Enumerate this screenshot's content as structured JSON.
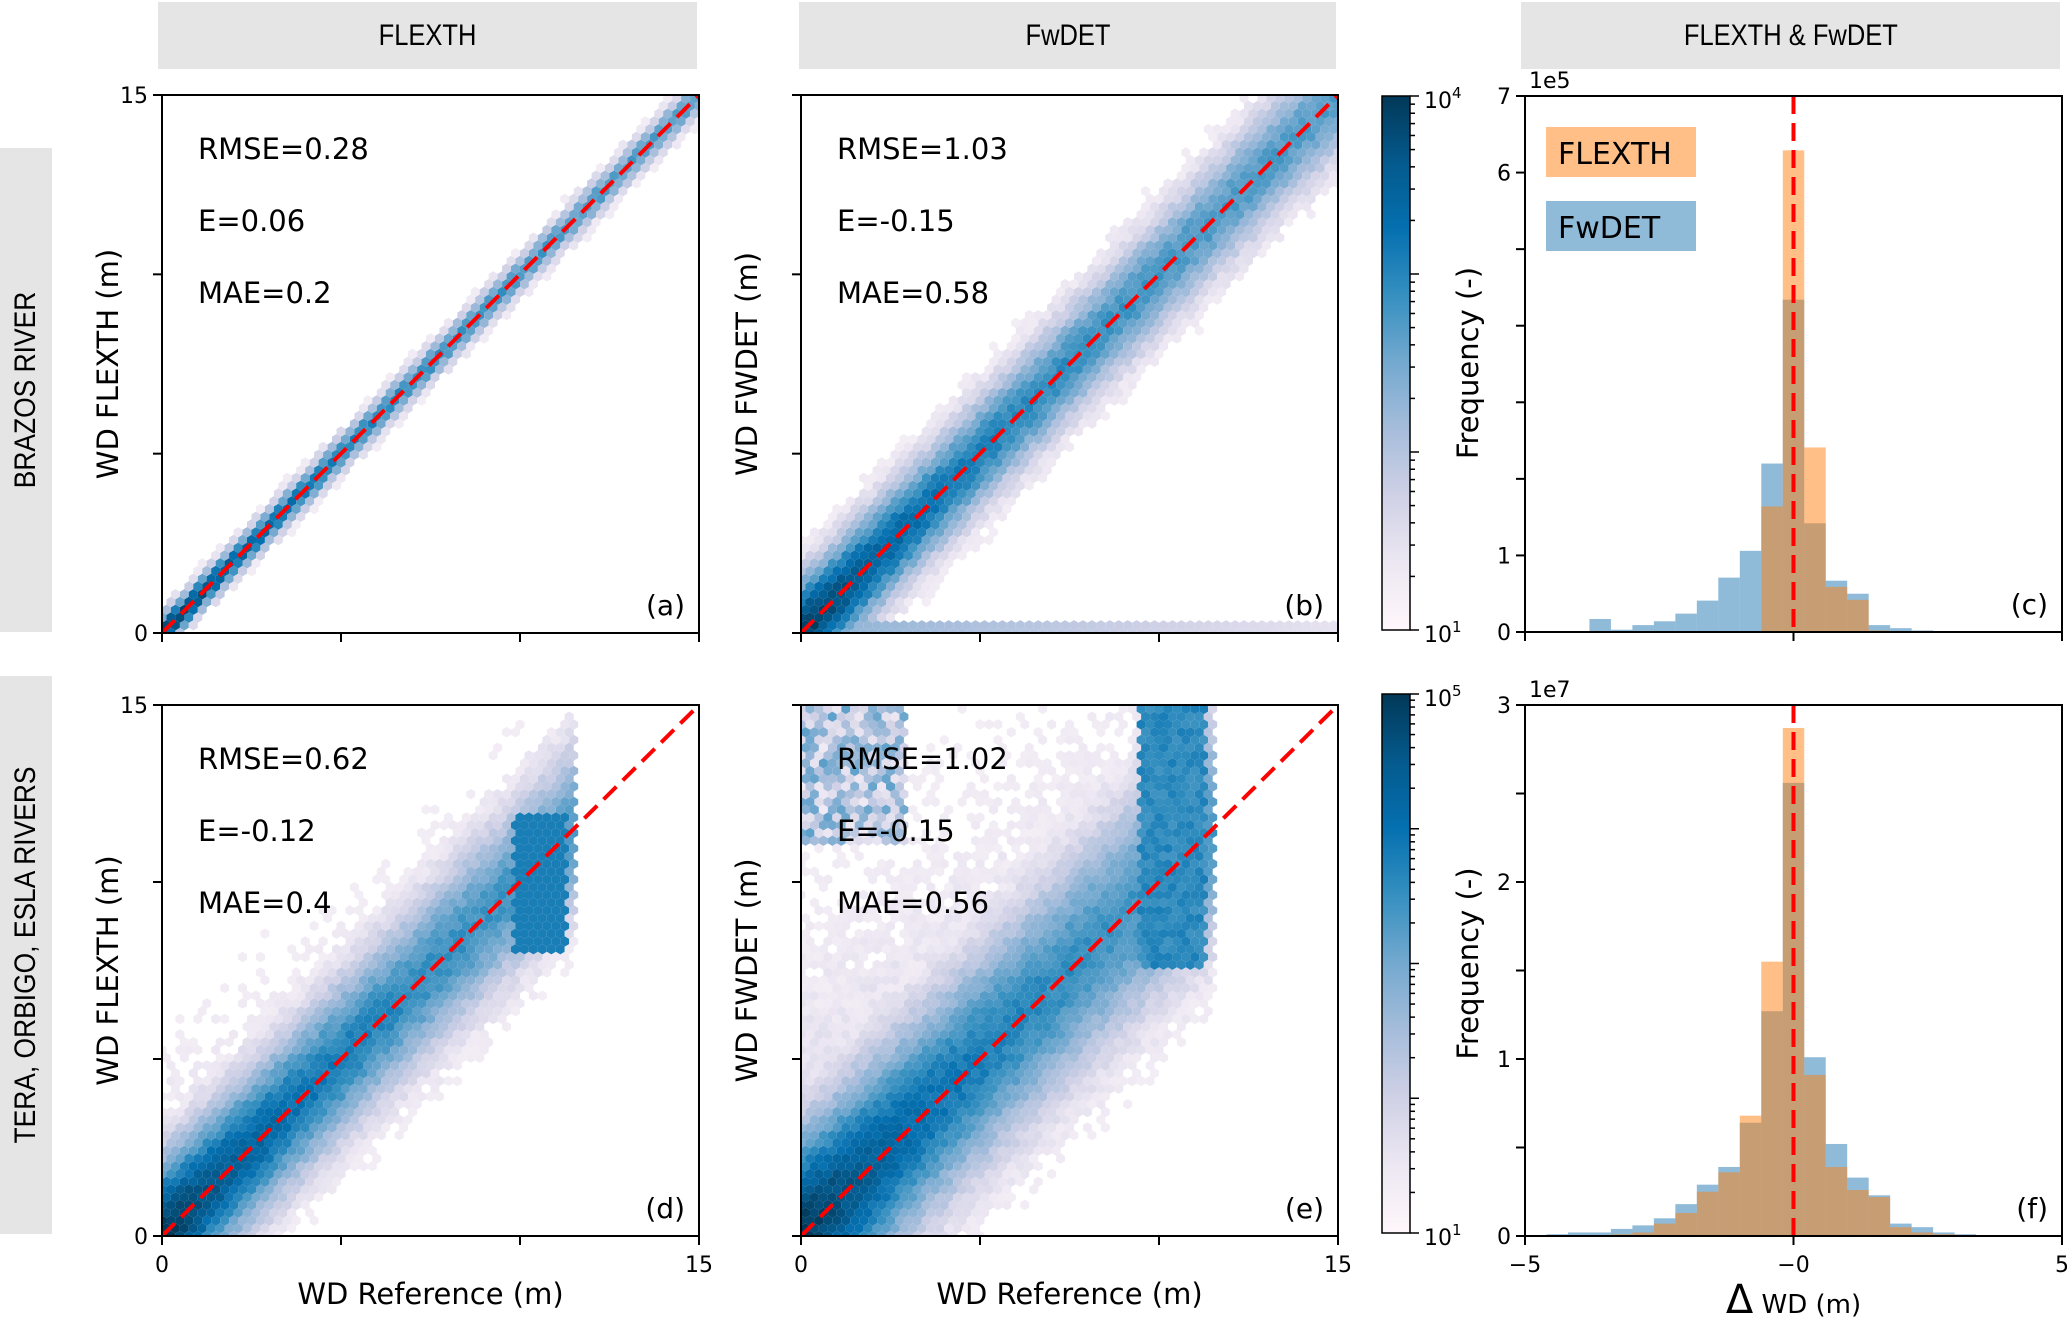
{
  "column_headers": [
    "FLEXTH",
    "FwDET",
    "FLEXTH & FwDET"
  ],
  "row_labels": [
    "BRAZOS RIVER",
    "TERA, ORBIGO, ESLA RIVERS"
  ],
  "colors": {
    "hex_cmap": [
      "#fff7fb",
      "#ece7f2",
      "#d0d1e6",
      "#a6bddb",
      "#74a9cf",
      "#3690c0",
      "#0570b0",
      "#045a8d",
      "#023858"
    ],
    "one_to_one_line": "#ff0000",
    "flexth_hist": "#ff7f0e",
    "fwdet_hist": "#1f77b4",
    "header_bg": "#e5e5e5"
  },
  "chart_data": [
    {
      "id": "a",
      "type": "heatmap",
      "subtype": "hexbin",
      "panel_label": "(a)",
      "row": "BRAZOS RIVER",
      "column": "FLEXTH",
      "xlabel": "",
      "ylabel": "WD FLEXTH (m)",
      "xlim": [
        0,
        15
      ],
      "ylim": [
        0,
        15
      ],
      "xticks": [
        0,
        5,
        10,
        15
      ],
      "xtick_labels": [
        "",
        "",
        "",
        ""
      ],
      "yticks": [
        0,
        5,
        10,
        15
      ],
      "ytick_labels": [
        "0",
        "",
        "",
        "15"
      ],
      "stats": [
        "RMSE=0.28",
        "E=0.06",
        "MAE=0.2"
      ],
      "reference_line": "1:1 dashed",
      "density_model": {
        "slope": 1.0,
        "spread": 0.35,
        "tail_above": 0.25,
        "tail_below": 0.1,
        "xmax": 14.8,
        "peak_near_origin": true,
        "scale": "log",
        "clim": [
          10,
          10000
        ]
      }
    },
    {
      "id": "b",
      "type": "heatmap",
      "subtype": "hexbin",
      "panel_label": "(b)",
      "row": "BRAZOS RIVER",
      "column": "FwDET",
      "xlabel": "",
      "ylabel": "WD FWDET (m)",
      "xlim": [
        0,
        15
      ],
      "ylim": [
        0,
        15
      ],
      "xticks": [
        0,
        5,
        10,
        15
      ],
      "xtick_labels": [
        "",
        "",
        "",
        ""
      ],
      "yticks": [
        0,
        5,
        10,
        15
      ],
      "ytick_labels": [
        "",
        "",
        "",
        ""
      ],
      "stats": [
        "RMSE=1.03",
        "E=-0.15",
        "MAE=0.58"
      ],
      "reference_line": "1:1 dashed",
      "density_model": {
        "slope": 1.0,
        "spread": 1.1,
        "tail_above": 1.2,
        "tail_below": 1.0,
        "xmax": 15,
        "peak_near_origin": true,
        "scale": "log",
        "clim": [
          10,
          10000
        ]
      }
    },
    {
      "id": "c",
      "type": "bar",
      "subtype": "overlaid histogram",
      "panel_label": "(c)",
      "row": "BRAZOS RIVER",
      "column": "FLEXTH & FwDET",
      "xlabel": "",
      "ylabel": "",
      "xlim": [
        -5,
        5
      ],
      "ylim": [
        0,
        7
      ],
      "y_multiplier": "1e5",
      "xticks": [
        -5,
        0,
        5
      ],
      "xtick_labels": [
        "",
        "",
        ""
      ],
      "yticks": [
        0,
        1,
        2,
        3,
        4,
        5,
        6,
        7
      ],
      "ytick_labels": [
        "0",
        "1",
        "",
        "",
        "",
        "",
        "6",
        "7"
      ],
      "bin_width": 0.4,
      "reference_line": "x=0 dashed",
      "legend": {
        "position": "top-left",
        "entries": [
          "FLEXTH",
          "FwDET"
        ]
      },
      "bin_centers": [
        -3.6,
        -3.2,
        -2.8,
        -2.4,
        -2.0,
        -1.6,
        -1.2,
        -0.8,
        -0.4,
        0.0,
        0.4,
        0.8,
        1.2,
        1.6,
        2.0,
        2.4
      ],
      "series": [
        {
          "name": "FLEXTH",
          "values": [
            0,
            0,
            0,
            0,
            0,
            0,
            0,
            0.01,
            1.64,
            6.29,
            2.41,
            0.59,
            0.42,
            0.02,
            0,
            0
          ]
        },
        {
          "name": "FwDET",
          "values": [
            0.17,
            0.03,
            0.09,
            0.14,
            0.24,
            0.41,
            0.71,
            1.06,
            2.2,
            4.34,
            1.42,
            0.67,
            0.5,
            0.09,
            0.05,
            0.02
          ]
        }
      ]
    },
    {
      "id": "d",
      "type": "heatmap",
      "subtype": "hexbin",
      "panel_label": "(d)",
      "row": "TERA, ORBIGO, ESLA RIVERS",
      "column": "FLEXTH",
      "xlabel": "WD Reference (m)",
      "ylabel": "WD FLEXTH (m)",
      "xlim": [
        0,
        15
      ],
      "ylim": [
        0,
        15
      ],
      "xticks": [
        0,
        5,
        10,
        15
      ],
      "xtick_labels": [
        "0",
        "",
        "",
        "15"
      ],
      "yticks": [
        0,
        5,
        10,
        15
      ],
      "ytick_labels": [
        "0",
        "",
        "",
        "15"
      ],
      "stats": [
        "RMSE=0.62",
        "E=-0.12",
        "MAE=0.4"
      ],
      "reference_line": "1:1 dashed",
      "density_model": {
        "slope": 1.0,
        "spread": 1.6,
        "tail_above": 3.0,
        "tail_below": 1.5,
        "xmax": 11.3,
        "peak_near_origin": true,
        "scale": "log",
        "clim": [
          10,
          100000
        ]
      }
    },
    {
      "id": "e",
      "type": "heatmap",
      "subtype": "hexbin",
      "panel_label": "(e)",
      "row": "TERA, ORBIGO, ESLA RIVERS",
      "column": "FwDET",
      "xlabel": "WD Reference (m)",
      "ylabel": "WD FWDET (m)",
      "xlim": [
        0,
        15
      ],
      "ylim": [
        0,
        15
      ],
      "xticks": [
        0,
        5,
        10,
        15
      ],
      "xtick_labels": [
        "0",
        "",
        "",
        "15"
      ],
      "yticks": [
        0,
        5,
        10,
        15
      ],
      "ytick_labels": [
        "",
        "",
        "",
        ""
      ],
      "stats": [
        "RMSE=1.02",
        "E=-0.15",
        "MAE=0.56"
      ],
      "reference_line": "1:1 dashed",
      "density_model": {
        "slope": 1.0,
        "spread": 2.2,
        "tail_above": 6.0,
        "tail_below": 2.5,
        "xmax": 11.3,
        "peak_near_origin": true,
        "scale": "log",
        "clim": [
          10,
          100000
        ]
      }
    },
    {
      "id": "f",
      "type": "bar",
      "subtype": "overlaid histogram",
      "panel_label": "(f)",
      "row": "TERA, ORBIGO, ESLA RIVERS",
      "column": "FLEXTH & FwDET",
      "xlabel": "ΔWD (m)",
      "ylabel": "",
      "xlim": [
        -5,
        5
      ],
      "ylim": [
        0,
        3
      ],
      "y_multiplier": "1e7",
      "xticks": [
        -5,
        0,
        5
      ],
      "xtick_labels": [
        "−5",
        "−0",
        "5"
      ],
      "yticks": [
        0,
        0.5,
        1,
        1.5,
        2,
        2.5,
        3
      ],
      "ytick_labels": [
        "0",
        "",
        "1",
        "",
        "2",
        "",
        "3"
      ],
      "bin_width": 0.4,
      "reference_line": "x=0 dashed",
      "bin_centers": [
        -4.4,
        -4.0,
        -3.6,
        -3.2,
        -2.8,
        -2.4,
        -2.0,
        -1.6,
        -1.2,
        -0.8,
        -0.4,
        0.0,
        0.4,
        0.8,
        1.2,
        1.6,
        2.0,
        2.4,
        2.8,
        3.2
      ],
      "series": [
        {
          "name": "FLEXTH",
          "values": [
            0,
            0,
            0,
            0.01,
            0.02,
            0.07,
            0.13,
            0.25,
            0.36,
            0.68,
            1.55,
            2.87,
            0.91,
            0.39,
            0.26,
            0.22,
            0.05,
            0.02,
            0.01,
            0
          ]
        },
        {
          "name": "FwDET",
          "values": [
            0.01,
            0.02,
            0.02,
            0.04,
            0.06,
            0.1,
            0.18,
            0.29,
            0.39,
            0.64,
            1.27,
            2.56,
            1.01,
            0.52,
            0.33,
            0.23,
            0.07,
            0.05,
            0.02,
            0.01
          ]
        }
      ]
    }
  ],
  "colorbars": [
    {
      "label": "Frequency (-)",
      "scale": "log",
      "min_label": "10",
      "min_exp": "1",
      "max_label": "10",
      "max_exp": "4",
      "range": [
        10,
        10000
      ]
    },
    {
      "label": "Frequency (-)",
      "scale": "log",
      "min_label": "10",
      "min_exp": "1",
      "max_label": "10",
      "max_exp": "5",
      "range": [
        10,
        100000
      ]
    }
  ]
}
